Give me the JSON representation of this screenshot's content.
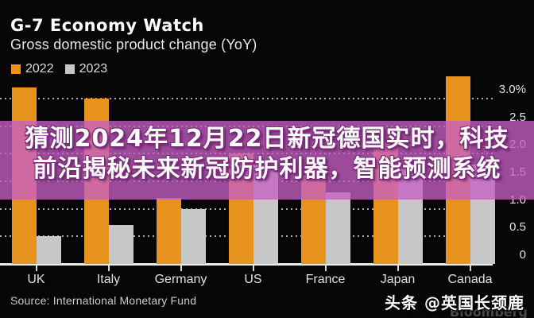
{
  "header": {
    "title": "G-7 Economy Watch",
    "subtitle": "Gross domestic product change (YoY)"
  },
  "legend": [
    {
      "label": "2022",
      "color": "#E8931D"
    },
    {
      "label": "2023",
      "color": "#C7C7C7"
    }
  ],
  "chart_data": {
    "type": "bar",
    "title": "G-7 Economy Watch",
    "subtitle": "Gross domestic product change (YoY)",
    "categories": [
      "UK",
      "Italy",
      "Germany",
      "US",
      "France",
      "Japan",
      "Canada"
    ],
    "series": [
      {
        "name": "2022",
        "color": "#E8931D",
        "values": [
          3.2,
          3.0,
          1.2,
          2.0,
          1.6,
          2.2,
          3.4
        ]
      },
      {
        "name": "2023",
        "color": "#C7C7C7",
        "values": [
          0.5,
          0.7,
          1.0,
          1.8,
          1.3,
          1.8,
          1.8
        ]
      }
    ],
    "ylabel": "",
    "xlabel": "",
    "ylim": [
      0,
      3.2
    ],
    "yticks": [
      {
        "value": 0.0,
        "label": "0"
      },
      {
        "value": 0.5,
        "label": "0.5"
      },
      {
        "value": 1.0,
        "label": "1.0"
      },
      {
        "value": 1.5,
        "label": "1.5"
      },
      {
        "value": 2.0,
        "label": "2.0"
      },
      {
        "value": 2.5,
        "label": "2.5"
      },
      {
        "value": 3.0,
        "label": "3.0%"
      }
    ],
    "grid": "horizontal-dotted",
    "axis_side": "right",
    "legend_position": "top-left",
    "background": "#060606"
  },
  "overlay": {
    "line1": "猜测2024年12月22日新冠德国实时，科技",
    "line2": "前沿揭秘未来新冠防护利器，智能预测系统",
    "band_color": "rgba(198,95,197,0.78)"
  },
  "footer": {
    "source": "Source: International Monetary Fund",
    "watermark": "头条 @英国长颈鹿",
    "bloomberg": "Bloomberg"
  }
}
